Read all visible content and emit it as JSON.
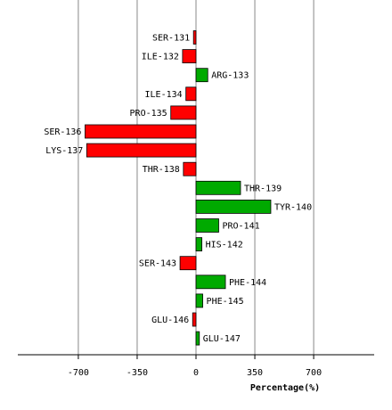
{
  "chart_data": {
    "type": "bar",
    "orientation": "horizontal",
    "title": "",
    "xlabel": "Percentage(%)",
    "ylabel": "",
    "xlim": [
      -1060,
      1060
    ],
    "xticks": [
      -700,
      -350,
      0,
      350,
      700
    ],
    "xtick_labels": [
      "-700",
      "-350",
      "0",
      "350",
      "700"
    ],
    "grid": "vertical lines at x ticks",
    "colors": {
      "negative": "#ff0000",
      "positive": "#00aa00",
      "grid": "#888888",
      "axis": "#000000",
      "outline": "#000000"
    },
    "categories": [
      "SER-131",
      "ILE-132",
      "ARG-133",
      "ILE-134",
      "PRO-135",
      "SER-136",
      "LYS-137",
      "THR-138",
      "THR-139",
      "TYR-140",
      "PRO-141",
      "HIS-142",
      "SER-143",
      "PHE-144",
      "PHE-145",
      "GLU-146",
      "GLU-147"
    ],
    "values": [
      -15,
      -80,
      70,
      -60,
      -150,
      -660,
      -650,
      -75,
      265,
      445,
      135,
      35,
      -95,
      175,
      40,
      -20,
      20
    ]
  }
}
